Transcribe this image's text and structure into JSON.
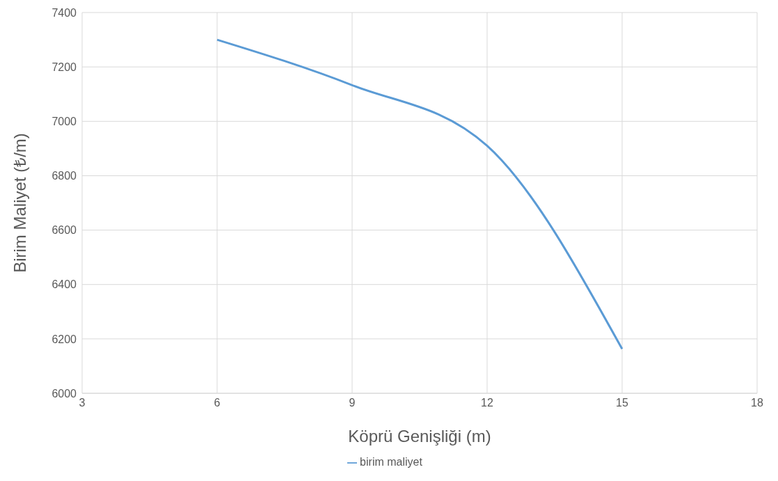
{
  "chart_data": {
    "type": "line",
    "xlabel": "Köprü Genişliği (m)",
    "ylabel": "Birim Maliyet (₺/m)",
    "x": [
      6,
      9,
      12,
      15
    ],
    "series": [
      {
        "name": "birim maliyet",
        "color": "#5b9bd5",
        "values": [
          7300,
          7133,
          6910,
          6163
        ]
      }
    ],
    "xlim": [
      3,
      18
    ],
    "xticks": [
      3,
      6,
      9,
      12,
      15,
      18
    ],
    "ylim": [
      6000,
      7400
    ],
    "yticks": [
      6000,
      6200,
      6400,
      6600,
      6800,
      7000,
      7200,
      7400
    ],
    "grid": true,
    "legend": "bottom",
    "marker": "none",
    "line_style": "solid"
  }
}
